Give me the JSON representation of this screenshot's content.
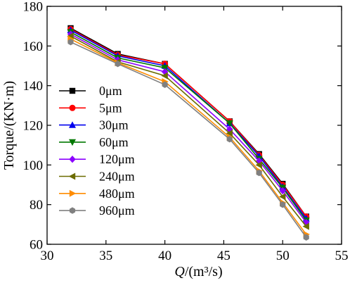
{
  "chart_data": {
    "type": "line",
    "xlabel_italic": "Q",
    "xlabel_rest": "/(m³/s)",
    "ylabel": "Torque/(KN·m)",
    "xlim": [
      30,
      55
    ],
    "ylim": [
      60,
      180
    ],
    "xticks": [
      30,
      35,
      40,
      45,
      50,
      55
    ],
    "yticks": [
      60,
      80,
      100,
      120,
      140,
      160,
      180
    ],
    "x": [
      32,
      36,
      40,
      45.5,
      48,
      50,
      52
    ],
    "legend_position": "left-middle",
    "grid": false,
    "series": [
      {
        "name": "0μm",
        "color": "#000000",
        "marker": "square",
        "values": [
          169,
          156,
          151,
          122,
          105.5,
          90.5,
          74
        ]
      },
      {
        "name": "5μm",
        "color": "#ff0000",
        "marker": "circle",
        "values": [
          168.5,
          155.5,
          151,
          122,
          105,
          90,
          74
        ]
      },
      {
        "name": "30μm",
        "color": "#0000ee",
        "marker": "triangle-up",
        "values": [
          168,
          155,
          150,
          121,
          104.5,
          89,
          73
        ]
      },
      {
        "name": "60μm",
        "color": "#007800",
        "marker": "triangle-down",
        "values": [
          167,
          154,
          149,
          121,
          103,
          88.5,
          72
        ]
      },
      {
        "name": "120μm",
        "color": "#8b00ff",
        "marker": "diamond",
        "values": [
          166,
          153,
          147,
          118,
          102,
          87,
          71
        ]
      },
      {
        "name": "240μm",
        "color": "#6b6b00",
        "marker": "triangle-left",
        "values": [
          165,
          152,
          145,
          116,
          100,
          84,
          69
        ]
      },
      {
        "name": "480μm",
        "color": "#ff8c00",
        "marker": "triangle-right",
        "values": [
          163.5,
          151.5,
          142,
          114,
          97,
          81,
          65
        ]
      },
      {
        "name": "960μm",
        "color": "#808080",
        "marker": "hexagon",
        "values": [
          162,
          151,
          140.5,
          113,
          96,
          80,
          63.5
        ]
      }
    ]
  }
}
